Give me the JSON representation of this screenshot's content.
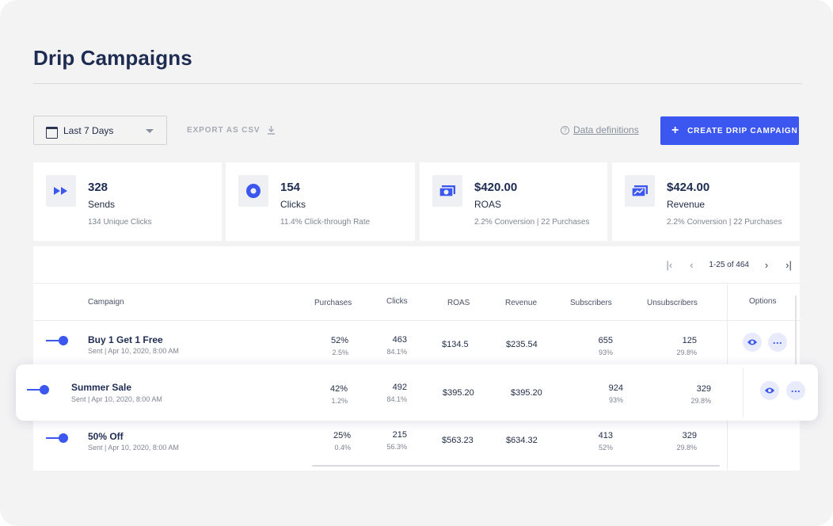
{
  "page": {
    "title": "Drip Campaigns"
  },
  "toolbar": {
    "date_range": "Last 7 Days",
    "export_label": "EXPORT AS CSV",
    "definitions_label": "Data definitions",
    "create_label": "CREATE DRIP CAMPAIGN"
  },
  "stats": [
    {
      "icon": "fast-forward-icon",
      "value": "328",
      "label": "Sends",
      "sub": "134 Unique Clicks"
    },
    {
      "icon": "target-icon",
      "value": "154",
      "label": "Clicks",
      "sub": "11.4% Click-through Rate"
    },
    {
      "icon": "money-icon",
      "value": "$420.00",
      "label": "ROAS",
      "sub": "2.2% Conversion | 22 Purchases"
    },
    {
      "icon": "money-chart-icon",
      "value": "$424.00",
      "label": "Revenue",
      "sub": "2.2% Conversion | 22 Purchases"
    }
  ],
  "pagination": {
    "range": "1-25 of 464"
  },
  "table": {
    "columns": {
      "campaign": "Campaign",
      "purchases": "Purchases",
      "clicks": "Clicks",
      "roas": "ROAS",
      "revenue": "Revenue",
      "subscribers": "Subscribers",
      "unsubscribers": "Unsubscribers",
      "options": "Options"
    },
    "rows": [
      {
        "name": "Buy 1 Get 1 Free",
        "meta": "Sent | Apr 10, 2020, 8:00 AM",
        "purchases": "52%",
        "purchases_sub": "2.5%",
        "clicks": "463",
        "clicks_sub": "84.1%",
        "roas": "$134.5",
        "revenue": "$235.54",
        "subscribers": "655",
        "subscribers_sub": "93%",
        "unsubscribers": "125",
        "unsubscribers_sub": "29.8%"
      },
      {
        "name": "Summer Sale",
        "meta": "Sent | Apr 10, 2020, 8:00 AM",
        "purchases": "42%",
        "purchases_sub": "1.2%",
        "clicks": "492",
        "clicks_sub": "84.1%",
        "roas": "$395.20",
        "revenue": "$395.20",
        "subscribers": "924",
        "subscribers_sub": "93%",
        "unsubscribers": "329",
        "unsubscribers_sub": "29.8%"
      },
      {
        "name": "50% Off",
        "meta": "Sent | Apr 10, 2020, 8:00 AM",
        "purchases": "25%",
        "purchases_sub": "0.4%",
        "clicks": "215",
        "clicks_sub": "56.3%",
        "roas": "$563.23",
        "revenue": "$634.32",
        "subscribers": "413",
        "subscribers_sub": "52%",
        "unsubscribers": "329",
        "unsubscribers_sub": "29.8%"
      }
    ]
  },
  "colors": {
    "accent": "#3b57f0",
    "title": "#1e2c52",
    "background": "#f3f3f4"
  }
}
